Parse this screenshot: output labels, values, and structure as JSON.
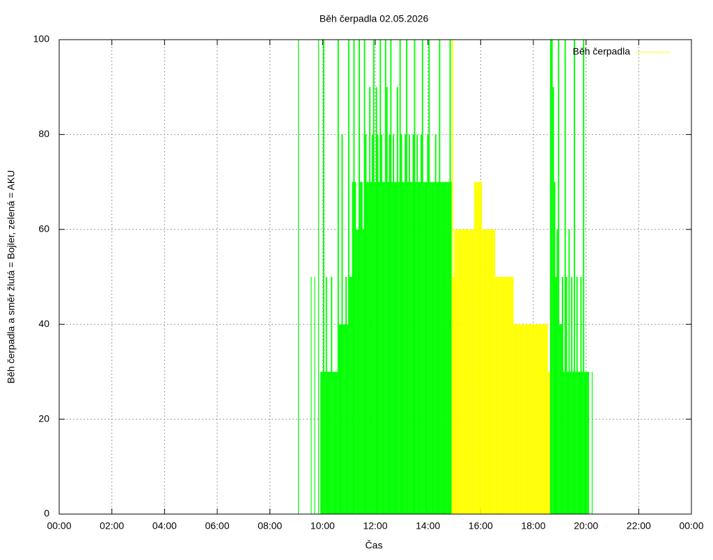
{
  "chart_data": {
    "type": "impulse",
    "title": "Běh čerpadla 02.05.2026",
    "x_label": "Čas",
    "y_label": "Běh čerpadla a směr žlutá = Bojler, zelená = AKU",
    "xlim": [
      0,
      1440
    ],
    "xticks": [
      {
        "value": 0,
        "label": "00:00"
      },
      {
        "value": 120,
        "label": "02:00"
      },
      {
        "value": 240,
        "label": "04:00"
      },
      {
        "value": 360,
        "label": "06:00"
      },
      {
        "value": 480,
        "label": "08:00"
      },
      {
        "value": 600,
        "label": "10:00"
      },
      {
        "value": 720,
        "label": "12:00"
      },
      {
        "value": 840,
        "label": "14:00"
      },
      {
        "value": 960,
        "label": "16:00"
      },
      {
        "value": 1080,
        "label": "18:00"
      },
      {
        "value": 1200,
        "label": "20:00"
      },
      {
        "value": 1320,
        "label": "22:00"
      },
      {
        "value": 1440,
        "label": "00:00"
      }
    ],
    "ylim": [
      0,
      100
    ],
    "yticks": [
      0,
      20,
      40,
      60,
      80,
      100
    ],
    "grid": true,
    "legend": "top-right",
    "series": [
      {
        "name": "Běh čerpadla",
        "color": "#ffff00",
        "x": [
          894,
          897,
          900,
          903,
          906,
          909,
          912,
          915,
          918,
          921,
          924,
          927,
          930,
          933,
          936,
          939,
          942,
          945,
          948,
          951,
          954,
          957,
          960,
          963,
          966,
          969,
          972,
          975,
          978,
          981,
          984,
          987,
          990,
          993,
          996,
          999,
          1002,
          1005,
          1008,
          1011,
          1014,
          1017,
          1020,
          1023,
          1026,
          1029,
          1032,
          1035,
          1038,
          1041,
          1044,
          1047,
          1050,
          1053,
          1056,
          1059,
          1062,
          1065,
          1068,
          1071,
          1074,
          1077,
          1080,
          1083,
          1086,
          1089,
          1092,
          1095,
          1098,
          1101,
          1104,
          1107,
          1110,
          1113,
          1116
        ],
        "values": [
          100,
          50,
          60,
          60,
          60,
          60,
          60,
          60,
          60,
          60,
          60,
          60,
          60,
          60,
          60,
          60,
          60,
          70,
          70,
          70,
          70,
          70,
          70,
          60,
          60,
          60,
          60,
          60,
          60,
          60,
          60,
          60,
          60,
          50,
          50,
          50,
          50,
          50,
          50,
          50,
          50,
          50,
          50,
          50,
          50,
          50,
          50,
          40,
          40,
          40,
          40,
          40,
          40,
          40,
          40,
          40,
          40,
          40,
          40,
          40,
          40,
          40,
          40,
          40,
          40,
          40,
          40,
          40,
          40,
          40,
          40,
          40,
          40,
          30,
          30
        ]
      },
      {
        "color": "#00ff00",
        "x": [
          544,
          573,
          581,
          590,
          595,
          598,
          601,
          604,
          607,
          610,
          613,
          616,
          619,
          622,
          625,
          628,
          631,
          634,
          637,
          640,
          643,
          646,
          649,
          652,
          655,
          658,
          661,
          664,
          667,
          670,
          673,
          676,
          679,
          682,
          685,
          688,
          691,
          694,
          697,
          700,
          703,
          706,
          709,
          712,
          715,
          718,
          721,
          724,
          727,
          730,
          733,
          736,
          739,
          742,
          745,
          748,
          751,
          754,
          757,
          760,
          763,
          766,
          769,
          772,
          775,
          778,
          781,
          784,
          787,
          790,
          793,
          796,
          799,
          802,
          805,
          808,
          811,
          814,
          817,
          820,
          823,
          826,
          829,
          832,
          835,
          838,
          841,
          844,
          847,
          850,
          853,
          856,
          859,
          862,
          865,
          868,
          871,
          874,
          877,
          880,
          883,
          886,
          889,
          892,
          1118,
          1121,
          1124,
          1127,
          1130,
          1133,
          1136,
          1139,
          1142,
          1145,
          1148,
          1151,
          1154,
          1157,
          1160,
          1163,
          1166,
          1169,
          1172,
          1175,
          1178,
          1181,
          1184,
          1187,
          1190,
          1193,
          1196,
          1199,
          1202,
          1205,
          1213
        ],
        "values": [
          100,
          50,
          50,
          100,
          30,
          30,
          100,
          30,
          50,
          30,
          30,
          30,
          50,
          30,
          30,
          30,
          30,
          100,
          40,
          40,
          80,
          40,
          40,
          50,
          40,
          100,
          50,
          50,
          70,
          100,
          70,
          60,
          60,
          100,
          70,
          70,
          60,
          100,
          80,
          70,
          70,
          90,
          70,
          80,
          100,
          70,
          90,
          80,
          70,
          100,
          80,
          70,
          70,
          100,
          90,
          70,
          80,
          100,
          70,
          80,
          70,
          70,
          90,
          70,
          100,
          80,
          70,
          70,
          80,
          100,
          70,
          80,
          70,
          70,
          80,
          100,
          70,
          80,
          70,
          70,
          80,
          100,
          70,
          70,
          70,
          80,
          100,
          70,
          70,
          70,
          70,
          80,
          70,
          70,
          100,
          70,
          70,
          70,
          70,
          70,
          70,
          70,
          100,
          70,
          100,
          100,
          90,
          70,
          50,
          60,
          100,
          40,
          40,
          50,
          30,
          100,
          50,
          30,
          60,
          30,
          50,
          30,
          100,
          30,
          50,
          30,
          30,
          50,
          30,
          100,
          30,
          30,
          30,
          30,
          30
        ]
      }
    ]
  }
}
